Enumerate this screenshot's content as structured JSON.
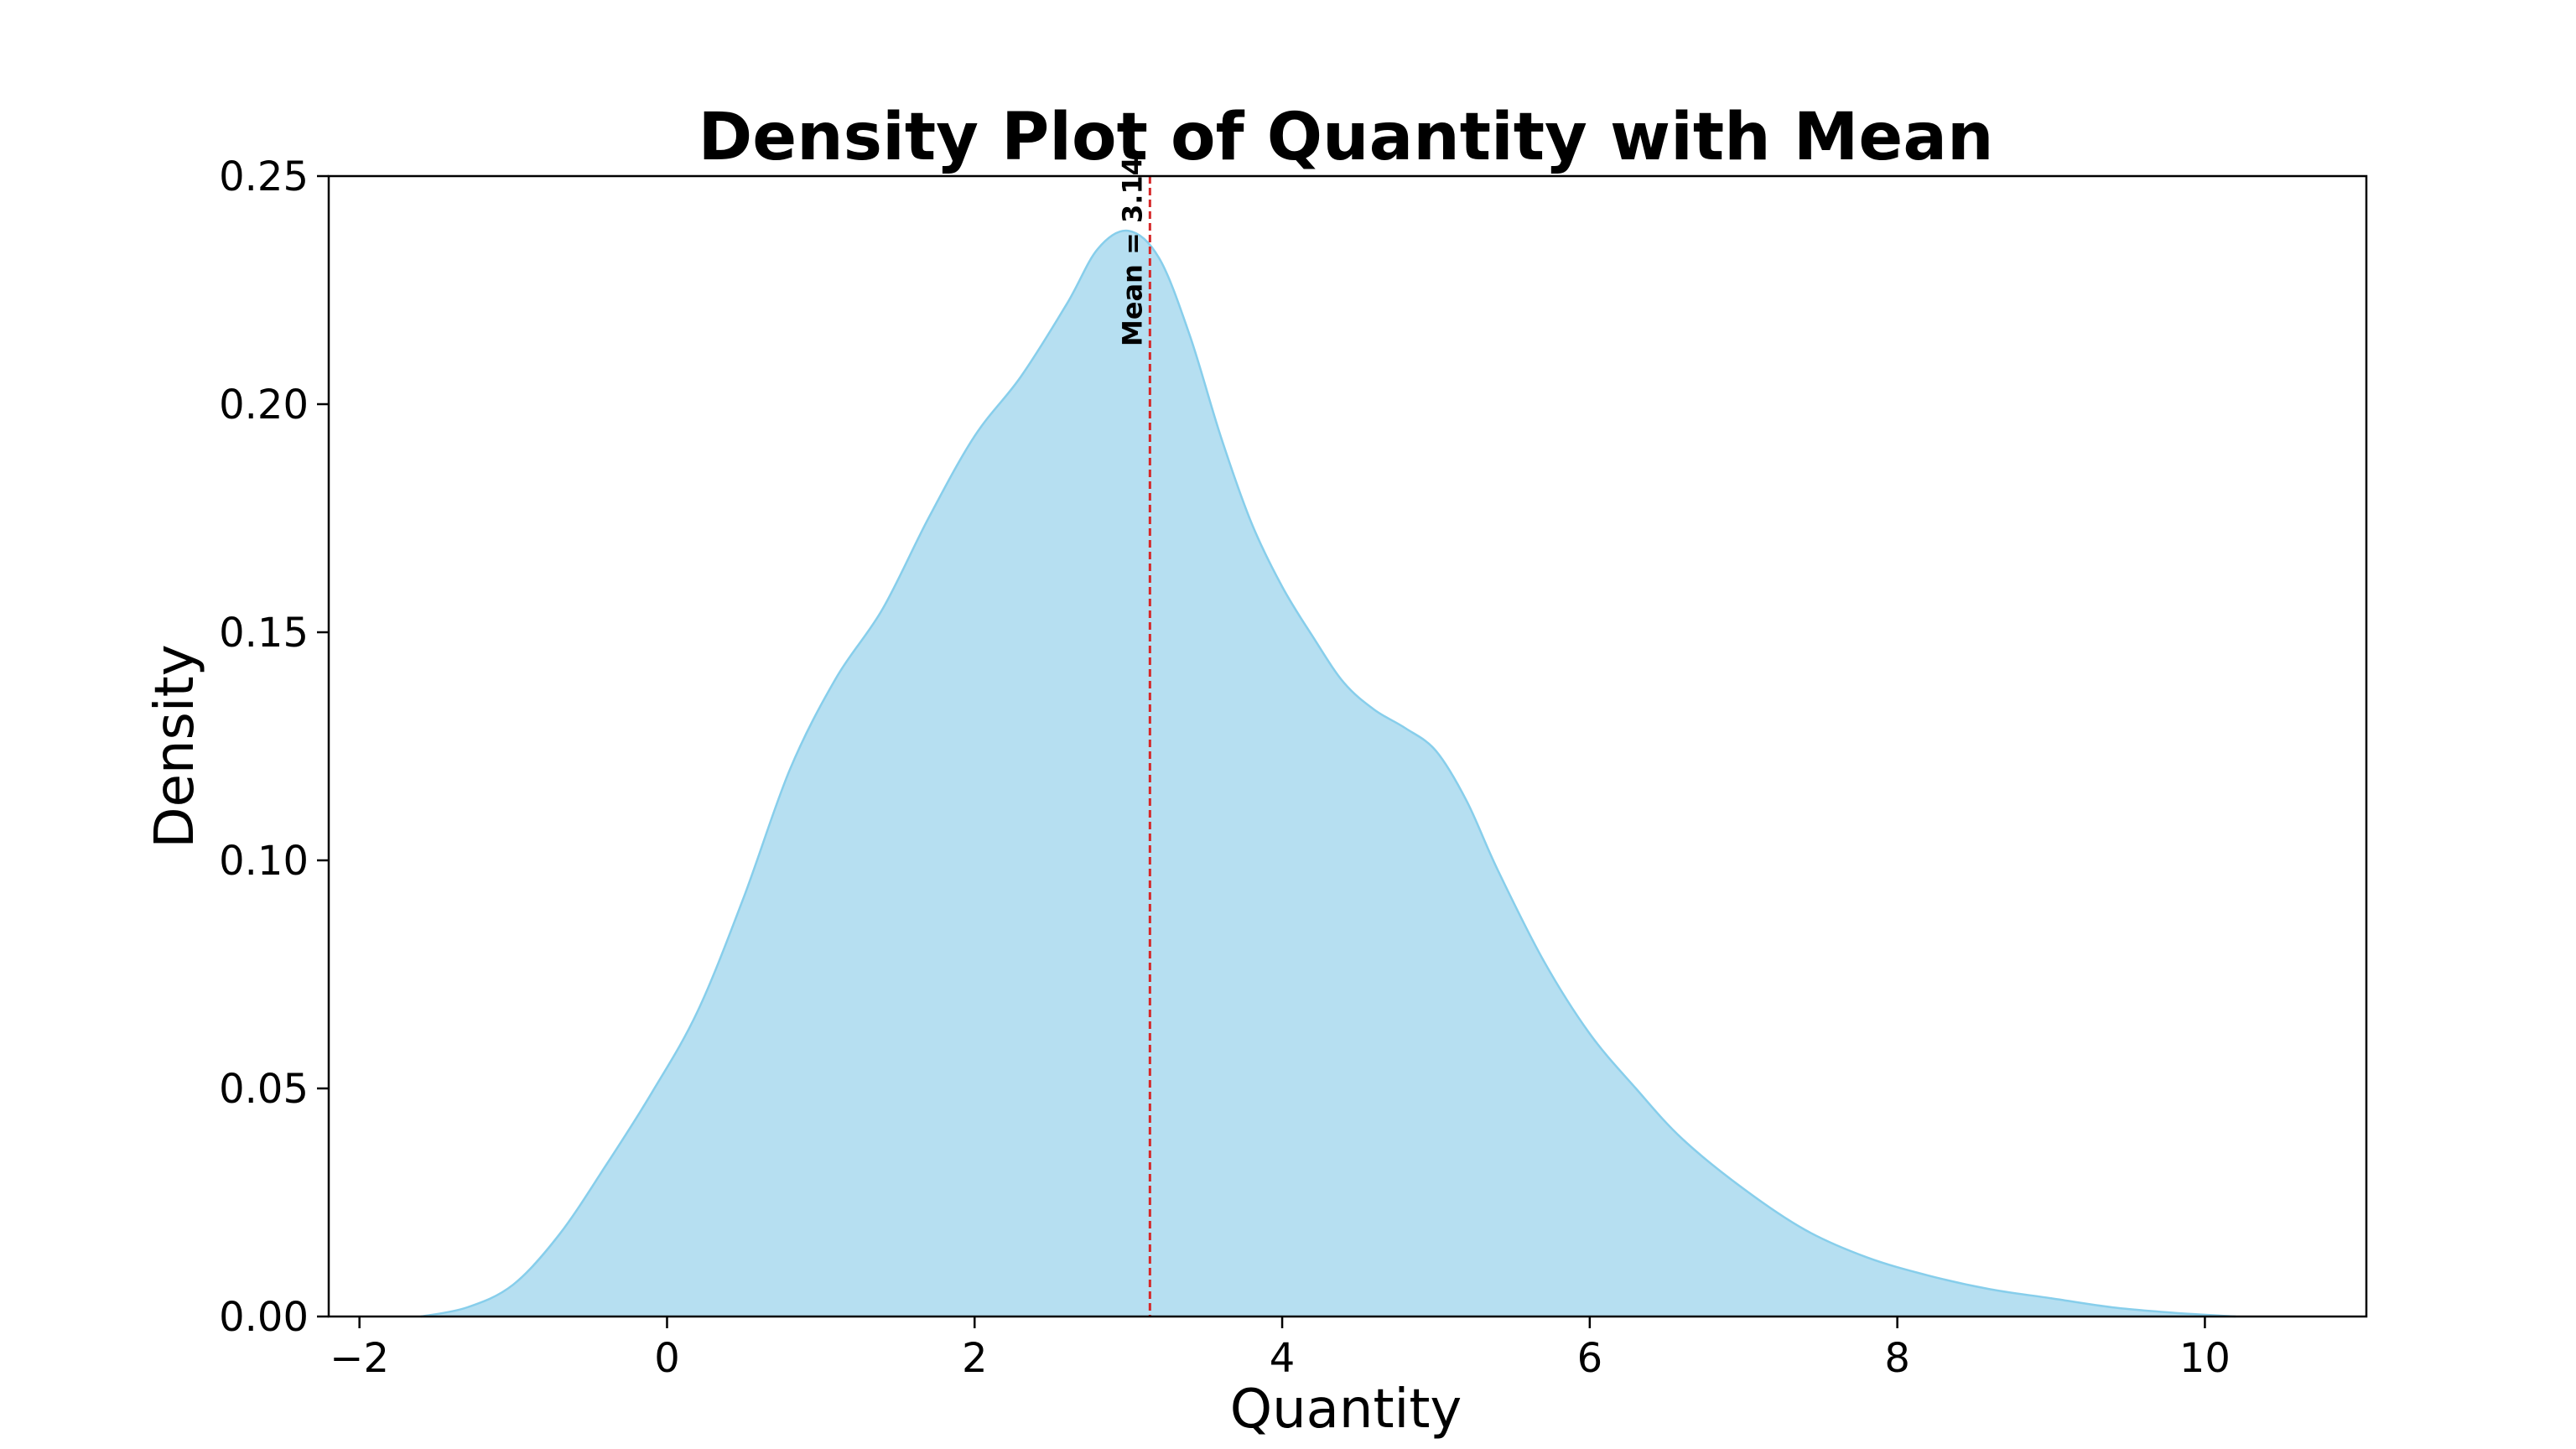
{
  "chart_data": {
    "type": "area",
    "title": "Density Plot of Quantity with Mean",
    "xlabel": "Quantity",
    "ylabel": "Density",
    "xlim": [
      -2.2,
      11.05
    ],
    "ylim": [
      0,
      0.25
    ],
    "x_ticks": [
      -2,
      0,
      2,
      4,
      6,
      8,
      10
    ],
    "x_tick_labels": [
      "−2",
      "0",
      "2",
      "4",
      "6",
      "8",
      "10"
    ],
    "y_ticks": [
      0,
      0.05,
      0.1,
      0.15,
      0.2,
      0.25
    ],
    "y_tick_labels": [
      "0.00",
      "0.05",
      "0.10",
      "0.15",
      "0.20",
      "0.25"
    ],
    "grid": false,
    "fill_color": "#b6dff1",
    "line_color": "#87ceeb",
    "mean_line_color": "#d62728",
    "mean": 3.14,
    "mean_label": "Mean = 3.14",
    "series": [
      {
        "x": [
          -1.6,
          -1.3,
          -1.0,
          -0.7,
          -0.4,
          -0.1,
          0.2,
          0.5,
          0.8,
          1.1,
          1.4,
          1.7,
          2.0,
          2.3,
          2.6,
          2.8,
          3.0,
          3.2,
          3.4,
          3.6,
          3.8,
          4.0,
          4.2,
          4.4,
          4.6,
          4.8,
          5.0,
          5.2,
          5.4,
          5.7,
          6.0,
          6.3,
          6.6,
          7.0,
          7.4,
          7.8,
          8.2,
          8.6,
          9.0,
          9.4,
          9.8,
          10.2
        ],
        "y": [
          0.0,
          0.002,
          0.007,
          0.018,
          0.033,
          0.049,
          0.067,
          0.092,
          0.12,
          0.14,
          0.155,
          0.175,
          0.193,
          0.206,
          0.222,
          0.234,
          0.238,
          0.232,
          0.215,
          0.193,
          0.174,
          0.16,
          0.149,
          0.139,
          0.133,
          0.129,
          0.124,
          0.113,
          0.098,
          0.078,
          0.062,
          0.05,
          0.039,
          0.028,
          0.019,
          0.013,
          0.009,
          0.006,
          0.004,
          0.002,
          0.0008,
          0.0
        ]
      }
    ]
  }
}
